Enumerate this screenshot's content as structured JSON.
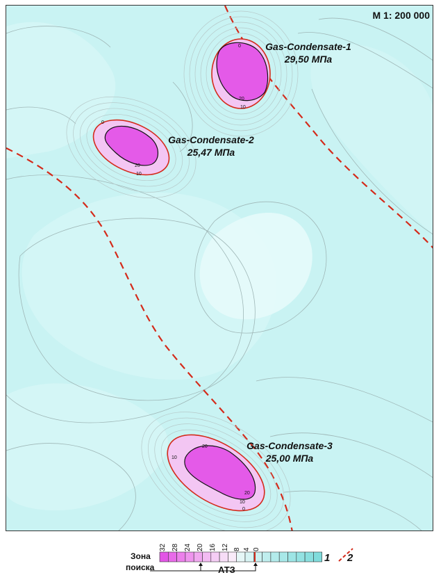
{
  "map": {
    "scale": "M 1: 200 000",
    "colors": {
      "background": "#c9f3f3",
      "zone_inner": "#e9fbfb",
      "contour": "#9fb7b7",
      "boundary_red": "#d42a1a",
      "fault_red": "#d42a1a",
      "magenta_core": "#e45ae8",
      "magenta_light": "#f3c6f3"
    },
    "fields": [
      {
        "name": "Gas-Condensate-1",
        "pressure": "29,50 МПа",
        "contour_labels": [
          "20",
          "10",
          "0"
        ]
      },
      {
        "name": "Gas-Condensate-2",
        "pressure": "25,47 МПа",
        "contour_labels": [
          "20",
          "10",
          "0"
        ]
      },
      {
        "name": "Gas-Condensate-3",
        "pressure": "25,00 МПа",
        "contour_labels": [
          "20",
          "10",
          "20",
          "10",
          "0"
        ]
      }
    ]
  },
  "legend": {
    "zone_label_line1": "Зона",
    "zone_label_line2": "поиска",
    "scale_ticks": [
      "32",
      "28",
      "24",
      "20",
      "16",
      "12",
      "8",
      "4",
      "0"
    ],
    "atz_label": "АТЗ",
    "item1": "1",
    "item2": "2",
    "cell_colors": [
      "#e255e6",
      "#e86ae9",
      "#ec7feb",
      "#ef94ee",
      "#f1a8f0",
      "#f3bbf2",
      "#f5cdf5",
      "#f7ddf7",
      "#f9ebf9",
      "#e6f7f7",
      "#d8f4f4",
      "#cbf1f1",
      "#bfeeee",
      "#b3ebeb",
      "#a8e8e8",
      "#9de5e5",
      "#93e2e2",
      "#89dfdf",
      "#80dcdc"
    ]
  }
}
